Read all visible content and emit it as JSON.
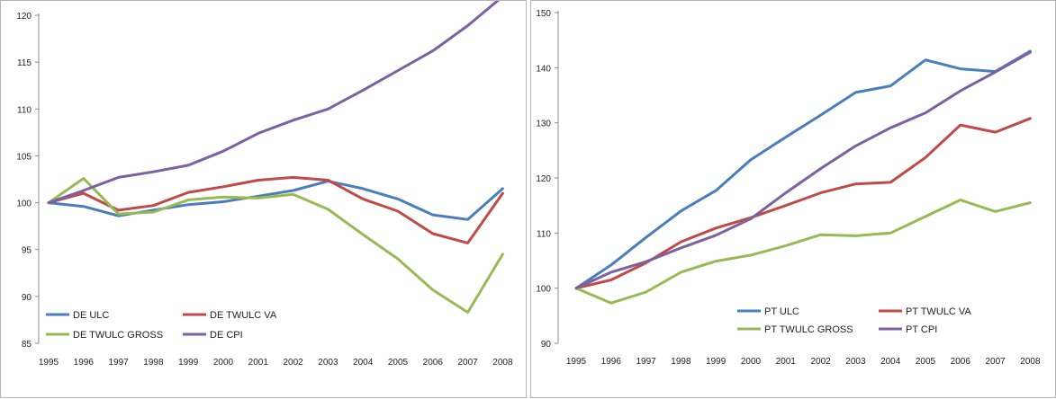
{
  "chart_data": [
    {
      "type": "line",
      "title": "",
      "xlabel": "",
      "ylabel": "",
      "x": [
        "1995",
        "1996",
        "1997",
        "1998",
        "1999",
        "2000",
        "2001",
        "2002",
        "2003",
        "2004",
        "2005",
        "2006",
        "2007",
        "2008"
      ],
      "ylim": [
        85,
        120
      ],
      "yticks": [
        85,
        90,
        95,
        100,
        105,
        110,
        115,
        120
      ],
      "grid": false,
      "legend": "bottom",
      "series": [
        {
          "name": "DE ULC",
          "color": "#4a7ebb",
          "values": [
            100,
            99.6,
            98.6,
            99.2,
            99.8,
            100.1,
            100.7,
            101.3,
            102.3,
            101.5,
            100.4,
            98.7,
            98.2,
            101.5
          ]
        },
        {
          "name": "DE TWULC VA",
          "color": "#be4b48",
          "values": [
            100,
            101.0,
            99.2,
            99.7,
            101.1,
            101.7,
            102.4,
            102.7,
            102.4,
            100.4,
            99.1,
            96.7,
            95.7,
            101.0
          ]
        },
        {
          "name": "DE TWULC GROSS",
          "color": "#98b954",
          "values": [
            100,
            102.6,
            98.8,
            99.0,
            100.3,
            100.6,
            100.5,
            100.9,
            99.3,
            96.6,
            94.0,
            90.7,
            88.3,
            94.5
          ]
        },
        {
          "name": "DE CPI",
          "color": "#7d60a0",
          "values": [
            100,
            101.3,
            102.7,
            103.3,
            104.0,
            105.5,
            107.4,
            108.8,
            110.0,
            112.0,
            114.1,
            116.2,
            118.9,
            122.0
          ]
        }
      ]
    },
    {
      "type": "line",
      "title": "",
      "xlabel": "",
      "ylabel": "",
      "x": [
        "1995",
        "1996",
        "1997",
        "1998",
        "1999",
        "2000",
        "2001",
        "2002",
        "2003",
        "2004",
        "2005",
        "2006",
        "2007",
        "2008"
      ],
      "ylim": [
        90,
        150
      ],
      "yticks": [
        90,
        100,
        110,
        120,
        130,
        140,
        150
      ],
      "grid": false,
      "legend": "bottom",
      "series": [
        {
          "name": "PT ULC",
          "color": "#4a7ebb",
          "values": [
            100,
            104.2,
            109.2,
            114.0,
            117.7,
            123.3,
            127.4,
            131.4,
            135.5,
            136.7,
            141.4,
            139.8,
            139.3,
            143.0
          ]
        },
        {
          "name": "PT TWULC VA",
          "color": "#be4b48",
          "values": [
            100,
            101.5,
            104.6,
            108.4,
            110.9,
            112.8,
            115.0,
            117.3,
            118.9,
            119.2,
            123.7,
            129.6,
            128.3,
            130.8
          ]
        },
        {
          "name": "PT TWULC GROSS",
          "color": "#98b954",
          "values": [
            100,
            97.3,
            99.3,
            102.9,
            104.9,
            106.0,
            107.7,
            109.7,
            109.5,
            110.0,
            113.0,
            116.0,
            113.9,
            115.5
          ]
        },
        {
          "name": "PT CPI",
          "color": "#7d60a0",
          "values": [
            100,
            102.9,
            104.8,
            107.3,
            109.6,
            112.6,
            117.3,
            121.7,
            125.8,
            129.1,
            131.8,
            135.8,
            139.2,
            142.8
          ]
        }
      ]
    }
  ]
}
